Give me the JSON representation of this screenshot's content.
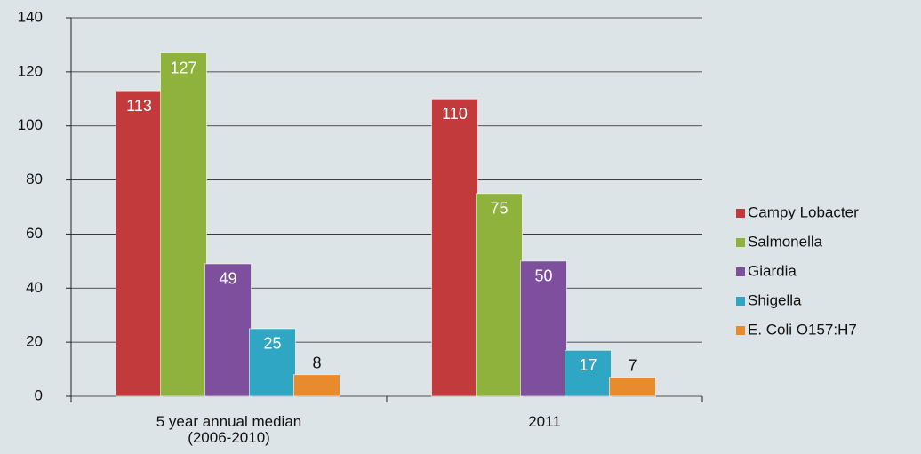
{
  "chart_data": {
    "type": "bar",
    "categories": [
      "5 year annual median\n(2006-2010)",
      "2011"
    ],
    "series": [
      {
        "name": "Campy Lobacter",
        "color": "#c23a3c",
        "values": [
          113,
          110
        ]
      },
      {
        "name": "Salmonella",
        "color": "#8fb23c",
        "values": [
          127,
          75
        ]
      },
      {
        "name": "Giardia",
        "color": "#7d4f9c",
        "values": [
          49,
          50
        ]
      },
      {
        "name": "Shigella",
        "color": "#2ea6c4",
        "values": [
          25,
          17
        ]
      },
      {
        "name": "E. Coli O157:H7",
        "color": "#e98a2c",
        "values": [
          8,
          7
        ]
      }
    ],
    "ylim": [
      0,
      140
    ],
    "yticks": [
      0,
      20,
      40,
      60,
      80,
      100,
      120,
      140
    ],
    "grid": true,
    "legend": "right"
  }
}
